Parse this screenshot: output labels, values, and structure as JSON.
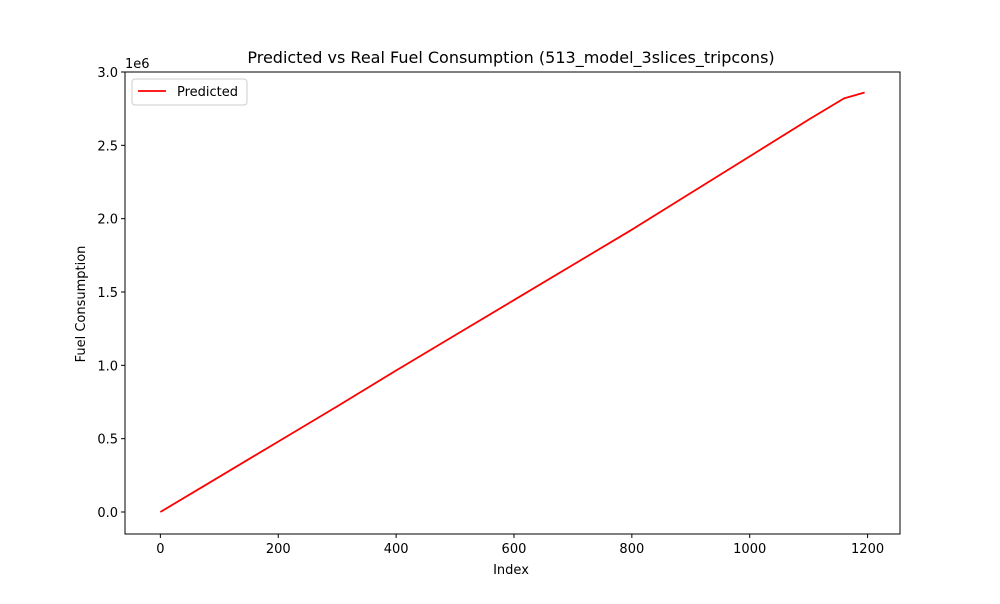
{
  "chart_data": {
    "type": "line",
    "title": "Predicted vs Real Fuel Consumption (513_model_3slices_tripcons)",
    "xlabel": "Index",
    "ylabel": "Fuel Consumption",
    "y_offset_label": "1e6",
    "xlim": [
      -60,
      1255
    ],
    "ylim": [
      -150000,
      3000000
    ],
    "x_ticks": [
      0,
      200,
      400,
      600,
      800,
      1000,
      1200
    ],
    "x_tick_labels": [
      "0",
      "200",
      "400",
      "600",
      "800",
      "1000",
      "1200"
    ],
    "y_ticks": [
      0,
      500000,
      1000000,
      1500000,
      2000000,
      2500000,
      3000000
    ],
    "y_tick_labels": [
      "0.0",
      "0.5",
      "1.0",
      "1.5",
      "2.0",
      "2.5",
      "3.0"
    ],
    "grid": false,
    "legend_position": "top-left",
    "series": [
      {
        "name": "Predicted",
        "color": "#ff0000",
        "x": [
          0,
          100,
          200,
          300,
          400,
          500,
          600,
          700,
          800,
          900,
          1000,
          1100,
          1160,
          1195
        ],
        "y": [
          0,
          240000,
          480000,
          720000,
          965000,
          1205000,
          1445000,
          1685000,
          1925000,
          2175000,
          2425000,
          2675000,
          2820000,
          2860000
        ]
      }
    ]
  }
}
